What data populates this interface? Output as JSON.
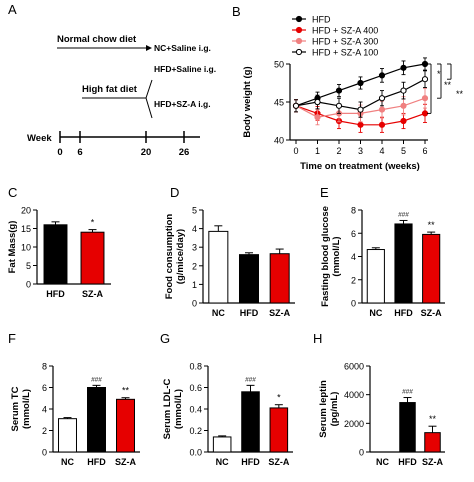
{
  "colors": {
    "nc": "#ffffff",
    "hfd": "#000000",
    "sza": "#e60000",
    "sza300": "#f08080",
    "axis": "#000000"
  },
  "panel_a": {
    "letter": "A",
    "normal_label": "Normal chow diet",
    "normal_branch": "NC+Saline i.g.",
    "high_label": "High fat diet",
    "high_branch_1": "HFD+Saline i.g.",
    "high_branch_2": "HFD+SZ-A i.g.",
    "week_label": "Week",
    "weeks": [
      "0",
      "6",
      "20",
      "26"
    ]
  },
  "chart_data": [
    {
      "panel": "B",
      "type": "line",
      "ylabel": "Body weight (g)",
      "xlabel": "Time on treatment (weeks)",
      "x": [
        0,
        1,
        2,
        3,
        4,
        5,
        6
      ],
      "xlim": [
        0,
        6
      ],
      "ylim": [
        40,
        50
      ],
      "yticks": [
        "40",
        "45",
        "50"
      ],
      "legend_position": "top-left",
      "series": [
        {
          "name": "HFD",
          "values": [
            44.5,
            45.5,
            46.5,
            47.5,
            48.5,
            49.5,
            50.0
          ],
          "errors": [
            0.8,
            0.8,
            0.8,
            0.8,
            0.9,
            0.9,
            0.8
          ],
          "color": "#000000",
          "marker": "filled"
        },
        {
          "name": "HFD + SZ-A 400",
          "values": [
            44.5,
            43.5,
            42.5,
            42.0,
            42.0,
            42.5,
            43.5
          ],
          "errors": [
            0.8,
            0.9,
            1.0,
            1.0,
            1.0,
            1.0,
            1.2
          ],
          "color": "#e60000",
          "marker": "filled"
        },
        {
          "name": "HFD + SZ-A 300",
          "values": [
            44.5,
            43.0,
            43.5,
            43.5,
            44.0,
            44.5,
            45.5
          ],
          "errors": [
            0.8,
            1.0,
            1.1,
            1.1,
            1.1,
            1.2,
            1.3
          ],
          "color": "#f08080",
          "marker": "filled"
        },
        {
          "name": "HFD + SZ-A 100",
          "values": [
            44.5,
            45.0,
            44.5,
            44.0,
            45.5,
            46.5,
            48.0
          ],
          "errors": [
            0.8,
            0.9,
            1.0,
            1.0,
            1.0,
            1.1,
            1.1
          ],
          "color": "#000000",
          "marker": "open"
        }
      ],
      "significance": [
        "*",
        "**",
        "**"
      ]
    },
    {
      "panel": "C",
      "type": "bar",
      "ylabel": "Fat Mass(g)",
      "categories": [
        "HFD",
        "SZ-A"
      ],
      "values": [
        16.0,
        14.0
      ],
      "errors": [
        0.8,
        0.7
      ],
      "ylim": [
        0,
        20
      ],
      "yticks": [
        "0",
        "5",
        "10",
        "15",
        "20"
      ],
      "annotations": [
        "",
        "*"
      ]
    },
    {
      "panel": "D",
      "type": "bar",
      "ylabel": "Food consumption (g/mice/day)",
      "categories": [
        "NC",
        "HFD",
        "SZ-A"
      ],
      "values": [
        3.85,
        2.6,
        2.65
      ],
      "errors": [
        0.3,
        0.1,
        0.25
      ],
      "ylim": [
        0,
        5
      ],
      "yticks": [
        "0",
        "1",
        "2",
        "3",
        "4",
        "5"
      ],
      "annotations": [
        "",
        "",
        ""
      ]
    },
    {
      "panel": "E",
      "type": "bar",
      "ylabel": "Fasting blood glucose (mmol/L)",
      "categories": [
        "NC",
        "HFD",
        "SZ-A"
      ],
      "values": [
        4.6,
        6.8,
        5.9
      ],
      "errors": [
        0.15,
        0.3,
        0.2
      ],
      "ylim": [
        0,
        8
      ],
      "yticks": [
        "0",
        "2",
        "4",
        "6",
        "8"
      ],
      "annotations": [
        "",
        "###",
        "**"
      ]
    },
    {
      "panel": "F",
      "type": "bar",
      "ylabel": "Serum TC (mmol/L)",
      "categories": [
        "NC",
        "HFD",
        "SZ-A"
      ],
      "values": [
        3.1,
        6.0,
        4.9
      ],
      "errors": [
        0.1,
        0.2,
        0.15
      ],
      "ylim": [
        0,
        8
      ],
      "yticks": [
        "0",
        "2",
        "4",
        "6",
        "8"
      ],
      "annotations": [
        "",
        "###",
        "**"
      ]
    },
    {
      "panel": "G",
      "type": "bar",
      "ylabel": "Serum LDL-C (mmol/L)",
      "categories": [
        "NC",
        "HFD",
        "SZ-A"
      ],
      "values": [
        0.14,
        0.56,
        0.41
      ],
      "errors": [
        0.01,
        0.06,
        0.03
      ],
      "ylim": [
        0,
        0.8
      ],
      "yticks": [
        "0.0",
        "0.2",
        "0.4",
        "0.6",
        "0.8"
      ],
      "annotations": [
        "",
        "###",
        "*"
      ]
    },
    {
      "panel": "H",
      "type": "bar",
      "ylabel": "Serum leptin (pg/mL)",
      "categories": [
        "NC",
        "HFD",
        "SZ-A"
      ],
      "values": [
        0,
        3450,
        1350
      ],
      "errors": [
        0,
        350,
        450
      ],
      "ylim": [
        0,
        6000
      ],
      "yticks": [
        "0",
        "2000",
        "4000",
        "6000"
      ],
      "annotations": [
        "",
        "###",
        "**"
      ]
    }
  ]
}
